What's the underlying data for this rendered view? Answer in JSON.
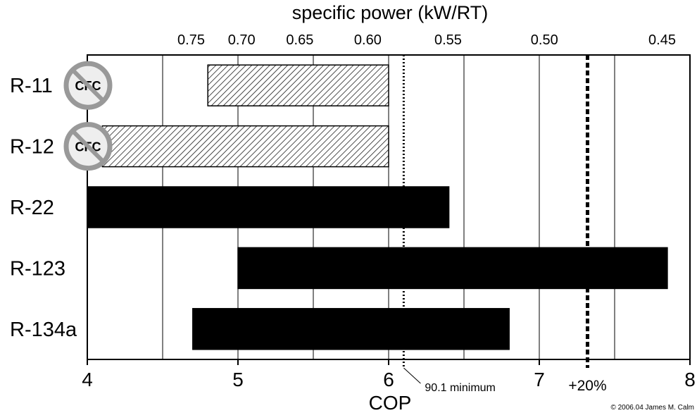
{
  "chart_data": {
    "type": "bar",
    "orientation": "horizontal",
    "xlabel": "COP",
    "x2label": "specific power (kW/RT)",
    "xlim": [
      4,
      8
    ],
    "x_ticks": [
      "4",
      "5",
      "6",
      "7",
      "8"
    ],
    "x2_ticks": [
      {
        "label": "0.75",
        "value": 0.75
      },
      {
        "label": "0.70",
        "value": 0.7
      },
      {
        "label": "0.65",
        "value": 0.65
      },
      {
        "label": "0.60",
        "value": 0.6
      },
      {
        "label": "0.55",
        "value": 0.55
      },
      {
        "label": "0.50",
        "value": 0.5
      },
      {
        "label": "0.45",
        "value": 0.45
      }
    ],
    "grid": "vertical lines at 0.5 COP intervals",
    "bars": [
      {
        "category": "R-11",
        "start": 4.8,
        "end": 6.0,
        "fill": "hatched",
        "badge": "CFC"
      },
      {
        "category": "R-12",
        "start": 4.1,
        "end": 6.0,
        "fill": "hatched",
        "badge": "CFC"
      },
      {
        "category": "R-22",
        "start": 4.0,
        "end": 6.4,
        "fill": "solid"
      },
      {
        "category": "R-123",
        "start": 5.0,
        "end": 7.85,
        "fill": "solid"
      },
      {
        "category": "R-134a",
        "start": 4.7,
        "end": 6.8,
        "fill": "solid"
      }
    ],
    "reference_lines": [
      {
        "label": "90.1 minimum",
        "value": 6.1,
        "style": "dotted"
      },
      {
        "label": "+20%",
        "value": 7.32,
        "style": "dashed"
      }
    ],
    "copyright": "© 2006.04 James M. Calm"
  },
  "colors": {
    "bar": "#000000",
    "badge_ring": "#999999",
    "badge_fill": "#eeeeee",
    "grid": "#000000"
  }
}
